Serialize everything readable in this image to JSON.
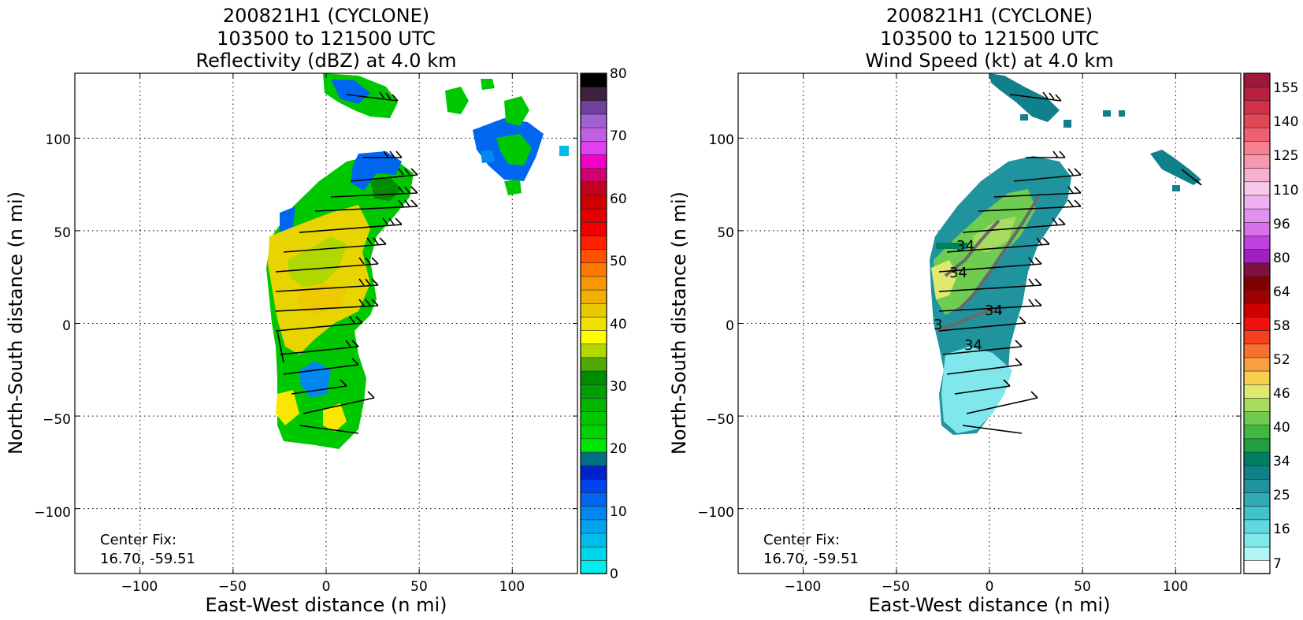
{
  "panels": [
    {
      "id": "reflectivity",
      "title_lines": [
        "200821H1 (CYCLONE)",
        "103500 to 121500 UTC",
        "Reflectivity (dBZ) at 4.0 km"
      ],
      "xlabel": "East-West distance (n mi)",
      "ylabel": "North-South distance (n mi)",
      "xticks": [
        "−100",
        "−50",
        "0",
        "50",
        "100"
      ],
      "yticks": [
        "−100",
        "−50",
        "0",
        "50",
        "100"
      ],
      "center_fix_label": "Center Fix:",
      "center_fix_value": "16.70, -59.51",
      "colorbar_ticks": [
        "0",
        "10",
        "20",
        "30",
        "40",
        "50",
        "60",
        "70",
        "80"
      ]
    },
    {
      "id": "windspeed",
      "title_lines": [
        "200821H1 (CYCLONE)",
        "103500 to 121500 UTC",
        "Wind Speed (kt) at 4.0 km"
      ],
      "xlabel": "East-West distance (n mi)",
      "ylabel": "North-South distance (n mi)",
      "xticks": [
        "−100",
        "−50",
        "0",
        "50",
        "100"
      ],
      "yticks": [
        "−100",
        "−50",
        "0",
        "50",
        "100"
      ],
      "center_fix_label": "Center Fix:",
      "center_fix_value": "16.70, -59.51",
      "colorbar_ticks": [
        "7",
        "16",
        "25",
        "34",
        "40",
        "46",
        "52",
        "58",
        "64",
        "80",
        "96",
        "110",
        "125",
        "140",
        "155"
      ],
      "contour_labels": [
        "34",
        "34",
        "34",
        "34",
        "3"
      ]
    }
  ],
  "chart_data": [
    {
      "type": "heatmap",
      "title": "200821H1 (CYCLONE) 103500 to 121500 UTC Reflectivity (dBZ) at 4.0 km",
      "xlabel": "East-West distance (n mi)",
      "ylabel": "North-South distance (n mi)",
      "xlim": [
        -135,
        135
      ],
      "ylim": [
        -135,
        135
      ],
      "xticks": [
        -100,
        -50,
        0,
        50,
        100
      ],
      "yticks": [
        -100,
        -50,
        0,
        50,
        100
      ],
      "grid": "dotted",
      "colorbar": {
        "label": "Reflectivity (dBZ)",
        "range": [
          0,
          80
        ],
        "ticks": [
          0,
          10,
          20,
          30,
          40,
          50,
          60,
          70,
          80
        ],
        "colors": [
          "#00eeee",
          "#00d6ea",
          "#00bcea",
          "#00a4ee",
          "#0088f0",
          "#0066f0",
          "#0044ee",
          "#0022cc",
          "#007080",
          "#00e800",
          "#00d400",
          "#00c800",
          "#00b400",
          "#00a000",
          "#008c00",
          "#50a800",
          "#b0d800",
          "#ffff00",
          "#f0e000",
          "#e8c800",
          "#f0b000",
          "#f89800",
          "#ff7800",
          "#ff5000",
          "#ff2000",
          "#f00000",
          "#e00000",
          "#cc0000",
          "#c00020",
          "#d00070",
          "#f000c8",
          "#e040f0",
          "#c060e0",
          "#a060d0",
          "#7040a0",
          "#402040",
          "#000000"
        ]
      },
      "center_fix": [
        16.7,
        -59.51
      ]
    },
    {
      "type": "heatmap",
      "title": "200821H1 (CYCLONE) 103500 to 121500 UTC Wind Speed (kt) at 4.0 km",
      "xlabel": "East-West distance (n mi)",
      "ylabel": "North-South distance (n mi)",
      "xlim": [
        -135,
        135
      ],
      "ylim": [
        -135,
        135
      ],
      "xticks": [
        -100,
        -50,
        0,
        50,
        100
      ],
      "yticks": [
        -100,
        -50,
        0,
        50,
        100
      ],
      "grid": "dotted",
      "contour_level_kt": 34,
      "colorbar": {
        "label": "Wind Speed (kt)",
        "ticks": [
          7,
          16,
          25,
          34,
          40,
          46,
          52,
          58,
          64,
          80,
          96,
          110,
          125,
          140,
          155
        ],
        "colors": [
          "#ffffff",
          "#b0f4f4",
          "#80e8ec",
          "#60d8e0",
          "#40c4cc",
          "#30aab4",
          "#20949e",
          "#10808a",
          "#008060",
          "#20a040",
          "#40b840",
          "#70cc50",
          "#a8dc60",
          "#e0e870",
          "#f8d050",
          "#f8a040",
          "#f87030",
          "#f84020",
          "#f01010",
          "#d00000",
          "#a00000",
          "#800000",
          "#801040",
          "#a020c0",
          "#c040e0",
          "#d870e8",
          "#e090f0",
          "#f0b0f0",
          "#f8c8e8",
          "#f8b0d0",
          "#f898b0",
          "#f88090",
          "#f06070",
          "#e04858",
          "#d03048",
          "#b82040",
          "#a01838"
        ]
      },
      "center_fix": [
        16.7,
        -59.51
      ]
    }
  ]
}
